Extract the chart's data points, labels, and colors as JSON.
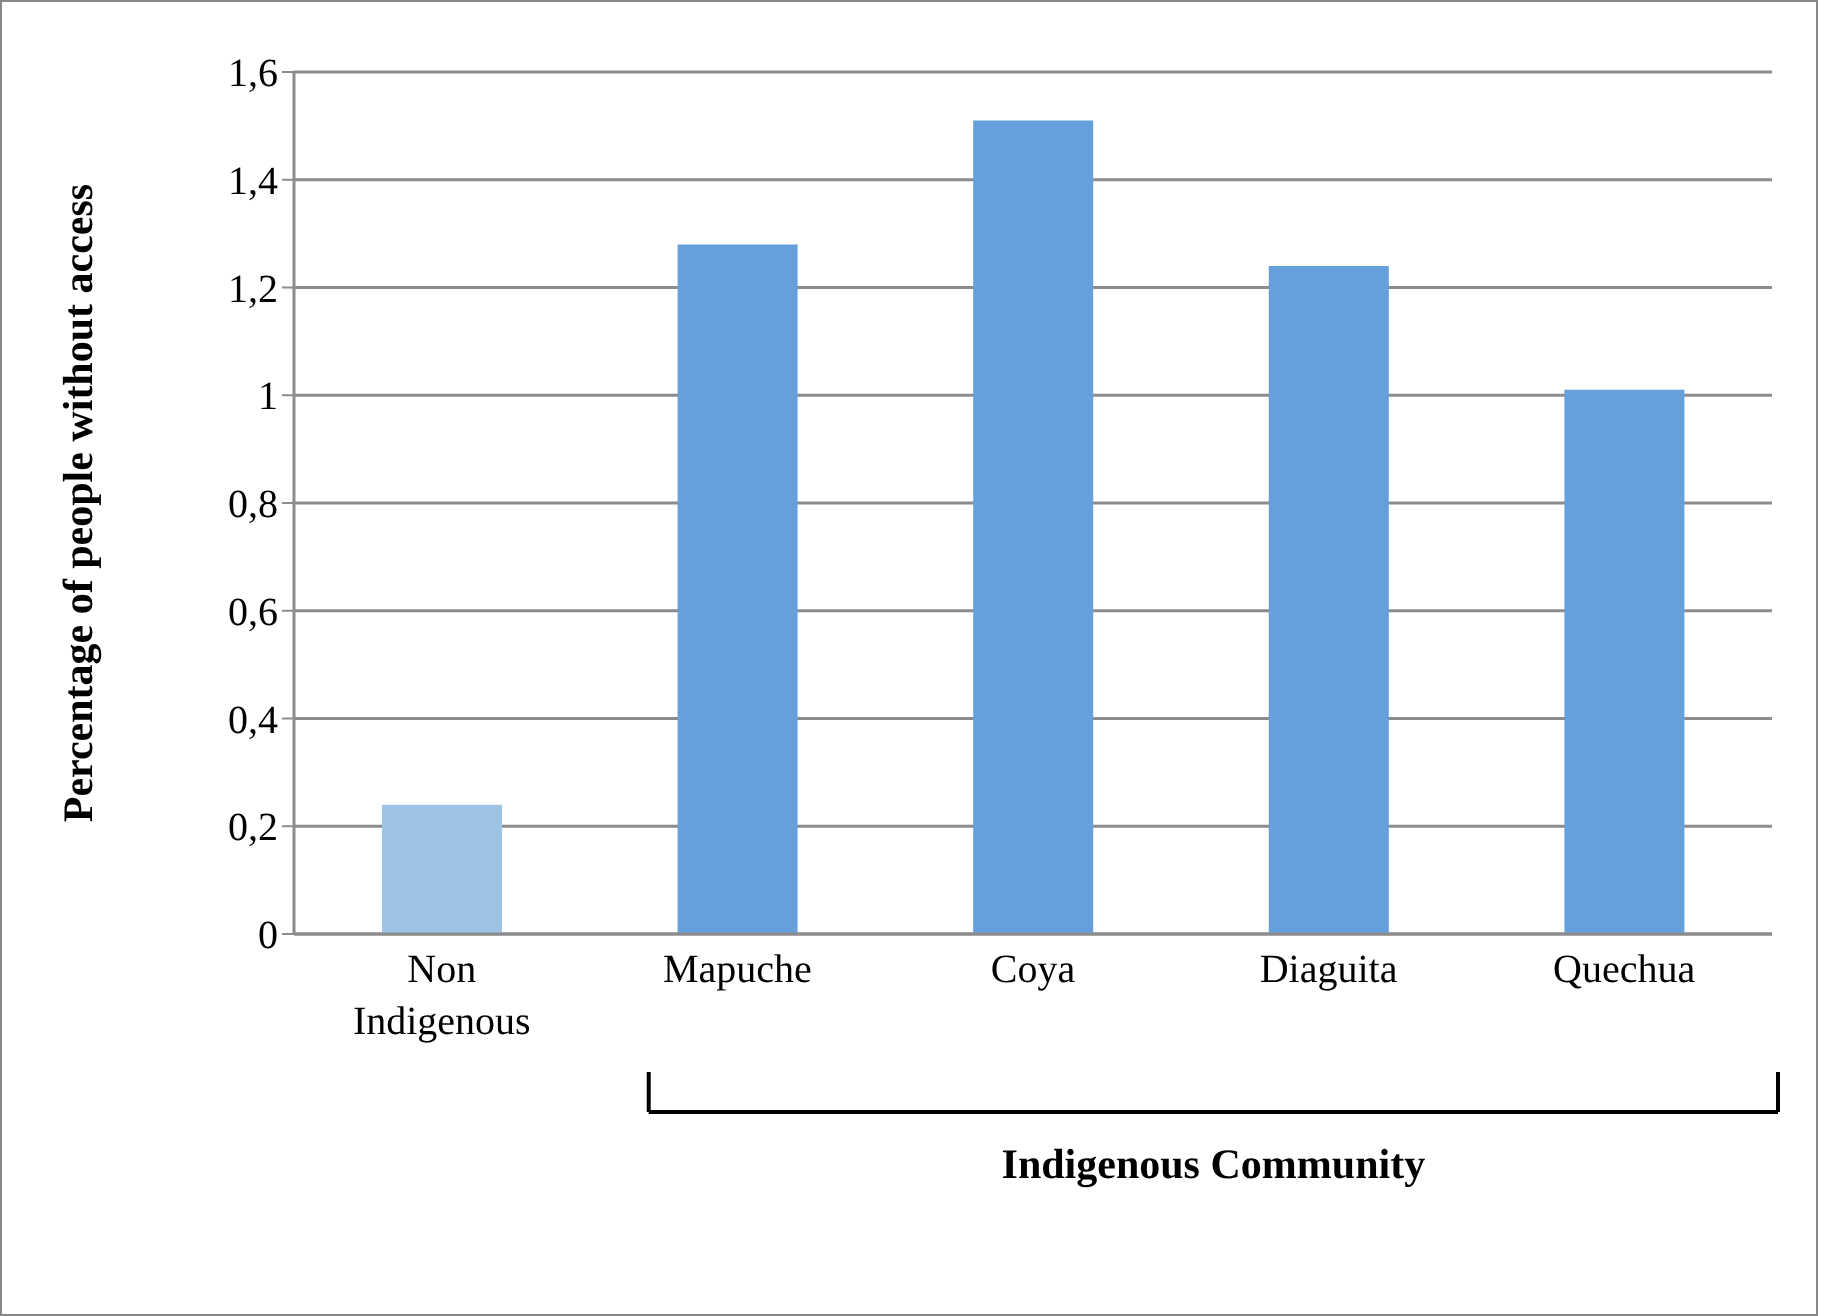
{
  "chart_data": {
    "type": "bar",
    "ylabel": "Percentage of people without access",
    "xlabel": "Indigenous Community",
    "categories": [
      "Non Indigenous",
      "Mapuche",
      "Coya",
      "Diaguita",
      "Quechua"
    ],
    "values": [
      0.24,
      1.28,
      1.51,
      1.24,
      1.01
    ],
    "colors": [
      "#9dc3e6",
      "#659fdc",
      "#659fdc",
      "#659fdc",
      "#659fdc"
    ],
    "ylim": [
      0,
      1.6
    ],
    "yticks": [
      0,
      {
        "value": 0.2,
        "label": "0,2"
      },
      {
        "value": 0.4,
        "label": "0,4"
      },
      {
        "value": 0.6,
        "label": "0,6"
      },
      {
        "value": 0.8,
        "label": "0,8"
      },
      1,
      {
        "value": 1.2,
        "label": "1,2"
      },
      {
        "value": 1.4,
        "label": "1,4"
      },
      {
        "value": 1.6,
        "label": "1,6"
      }
    ],
    "grid": "y",
    "legend": false
  }
}
